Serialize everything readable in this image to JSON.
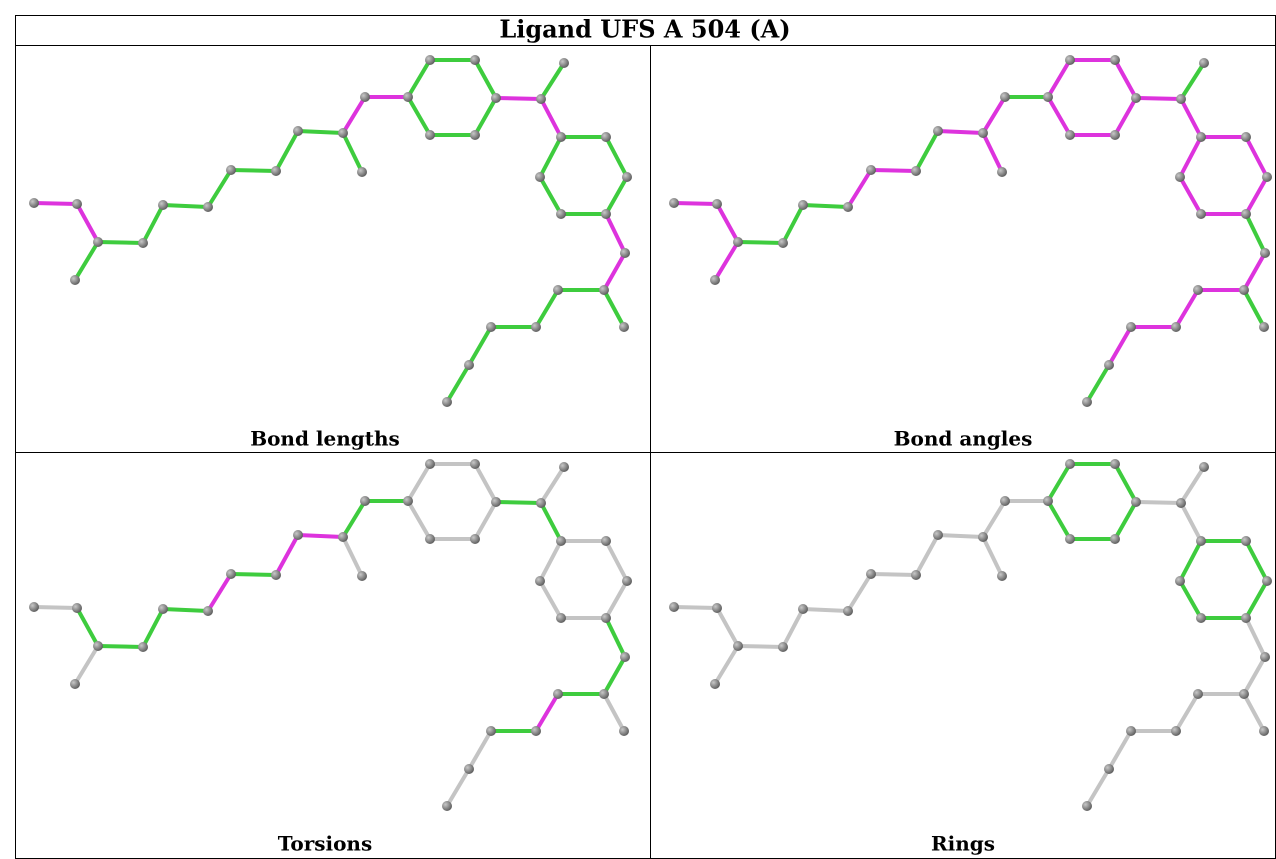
{
  "title": "Ligand UFS A 504 (A)",
  "panels": [
    {
      "label": "Bond lengths"
    },
    {
      "label": "Bond angles"
    },
    {
      "label": "Torsions"
    },
    {
      "label": "Rings"
    }
  ]
}
